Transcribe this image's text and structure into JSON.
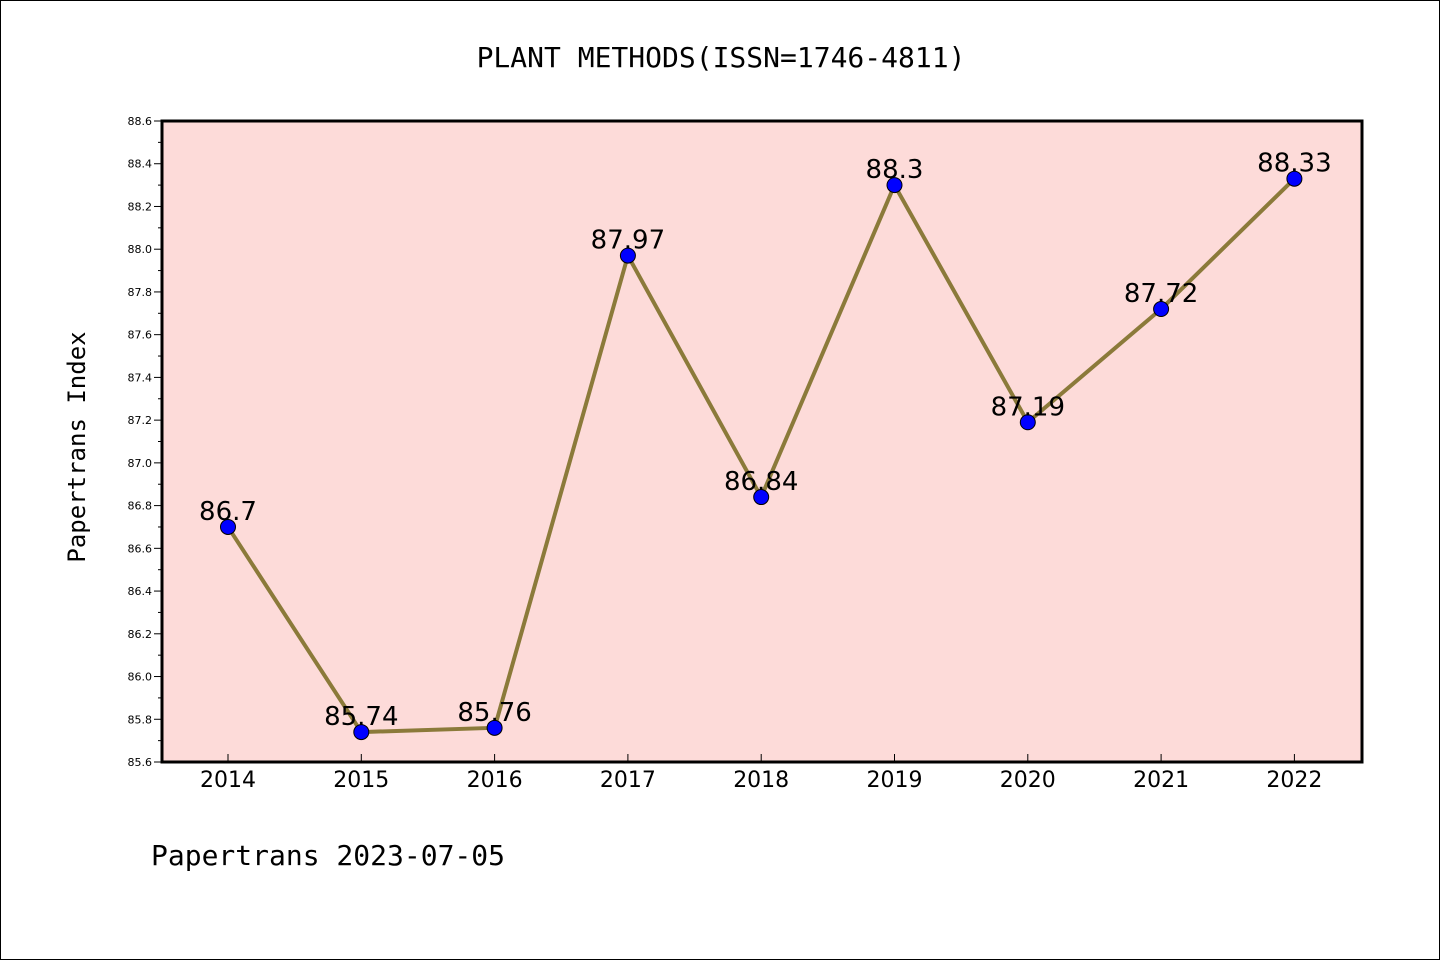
{
  "chart_data": {
    "type": "line",
    "title": "PLANT METHODS(ISSN=1746-4811)",
    "ylabel": "Papertrans Index",
    "xlabel": "",
    "categories": [
      "2014",
      "2015",
      "2016",
      "2017",
      "2018",
      "2019",
      "2020",
      "2021",
      "2022"
    ],
    "values": [
      86.7,
      85.74,
      85.76,
      87.97,
      86.84,
      88.3,
      87.19,
      87.72,
      88.33
    ],
    "data_labels": [
      "86.7",
      "85.74",
      "85.76",
      "87.97",
      "86.84",
      "88.3",
      "87.19",
      "87.72",
      "88.33"
    ],
    "ylim": [
      85.6,
      88.6
    ],
    "yticks": [
      "85.6",
      "85.8",
      "86.0",
      "86.2",
      "86.4",
      "86.6",
      "86.8",
      "87.0",
      "87.2",
      "87.4",
      "87.6",
      "87.8",
      "88.0",
      "88.2",
      "88.4",
      "88.6"
    ],
    "grid": false,
    "legend": "none",
    "colors": {
      "plot_background": "#fddbd9",
      "line": "#8b7a3a",
      "marker": "#0000ff",
      "marker_edge": "#000000"
    }
  },
  "footer": {
    "watermark": "Papertrans 2023-07-05"
  }
}
